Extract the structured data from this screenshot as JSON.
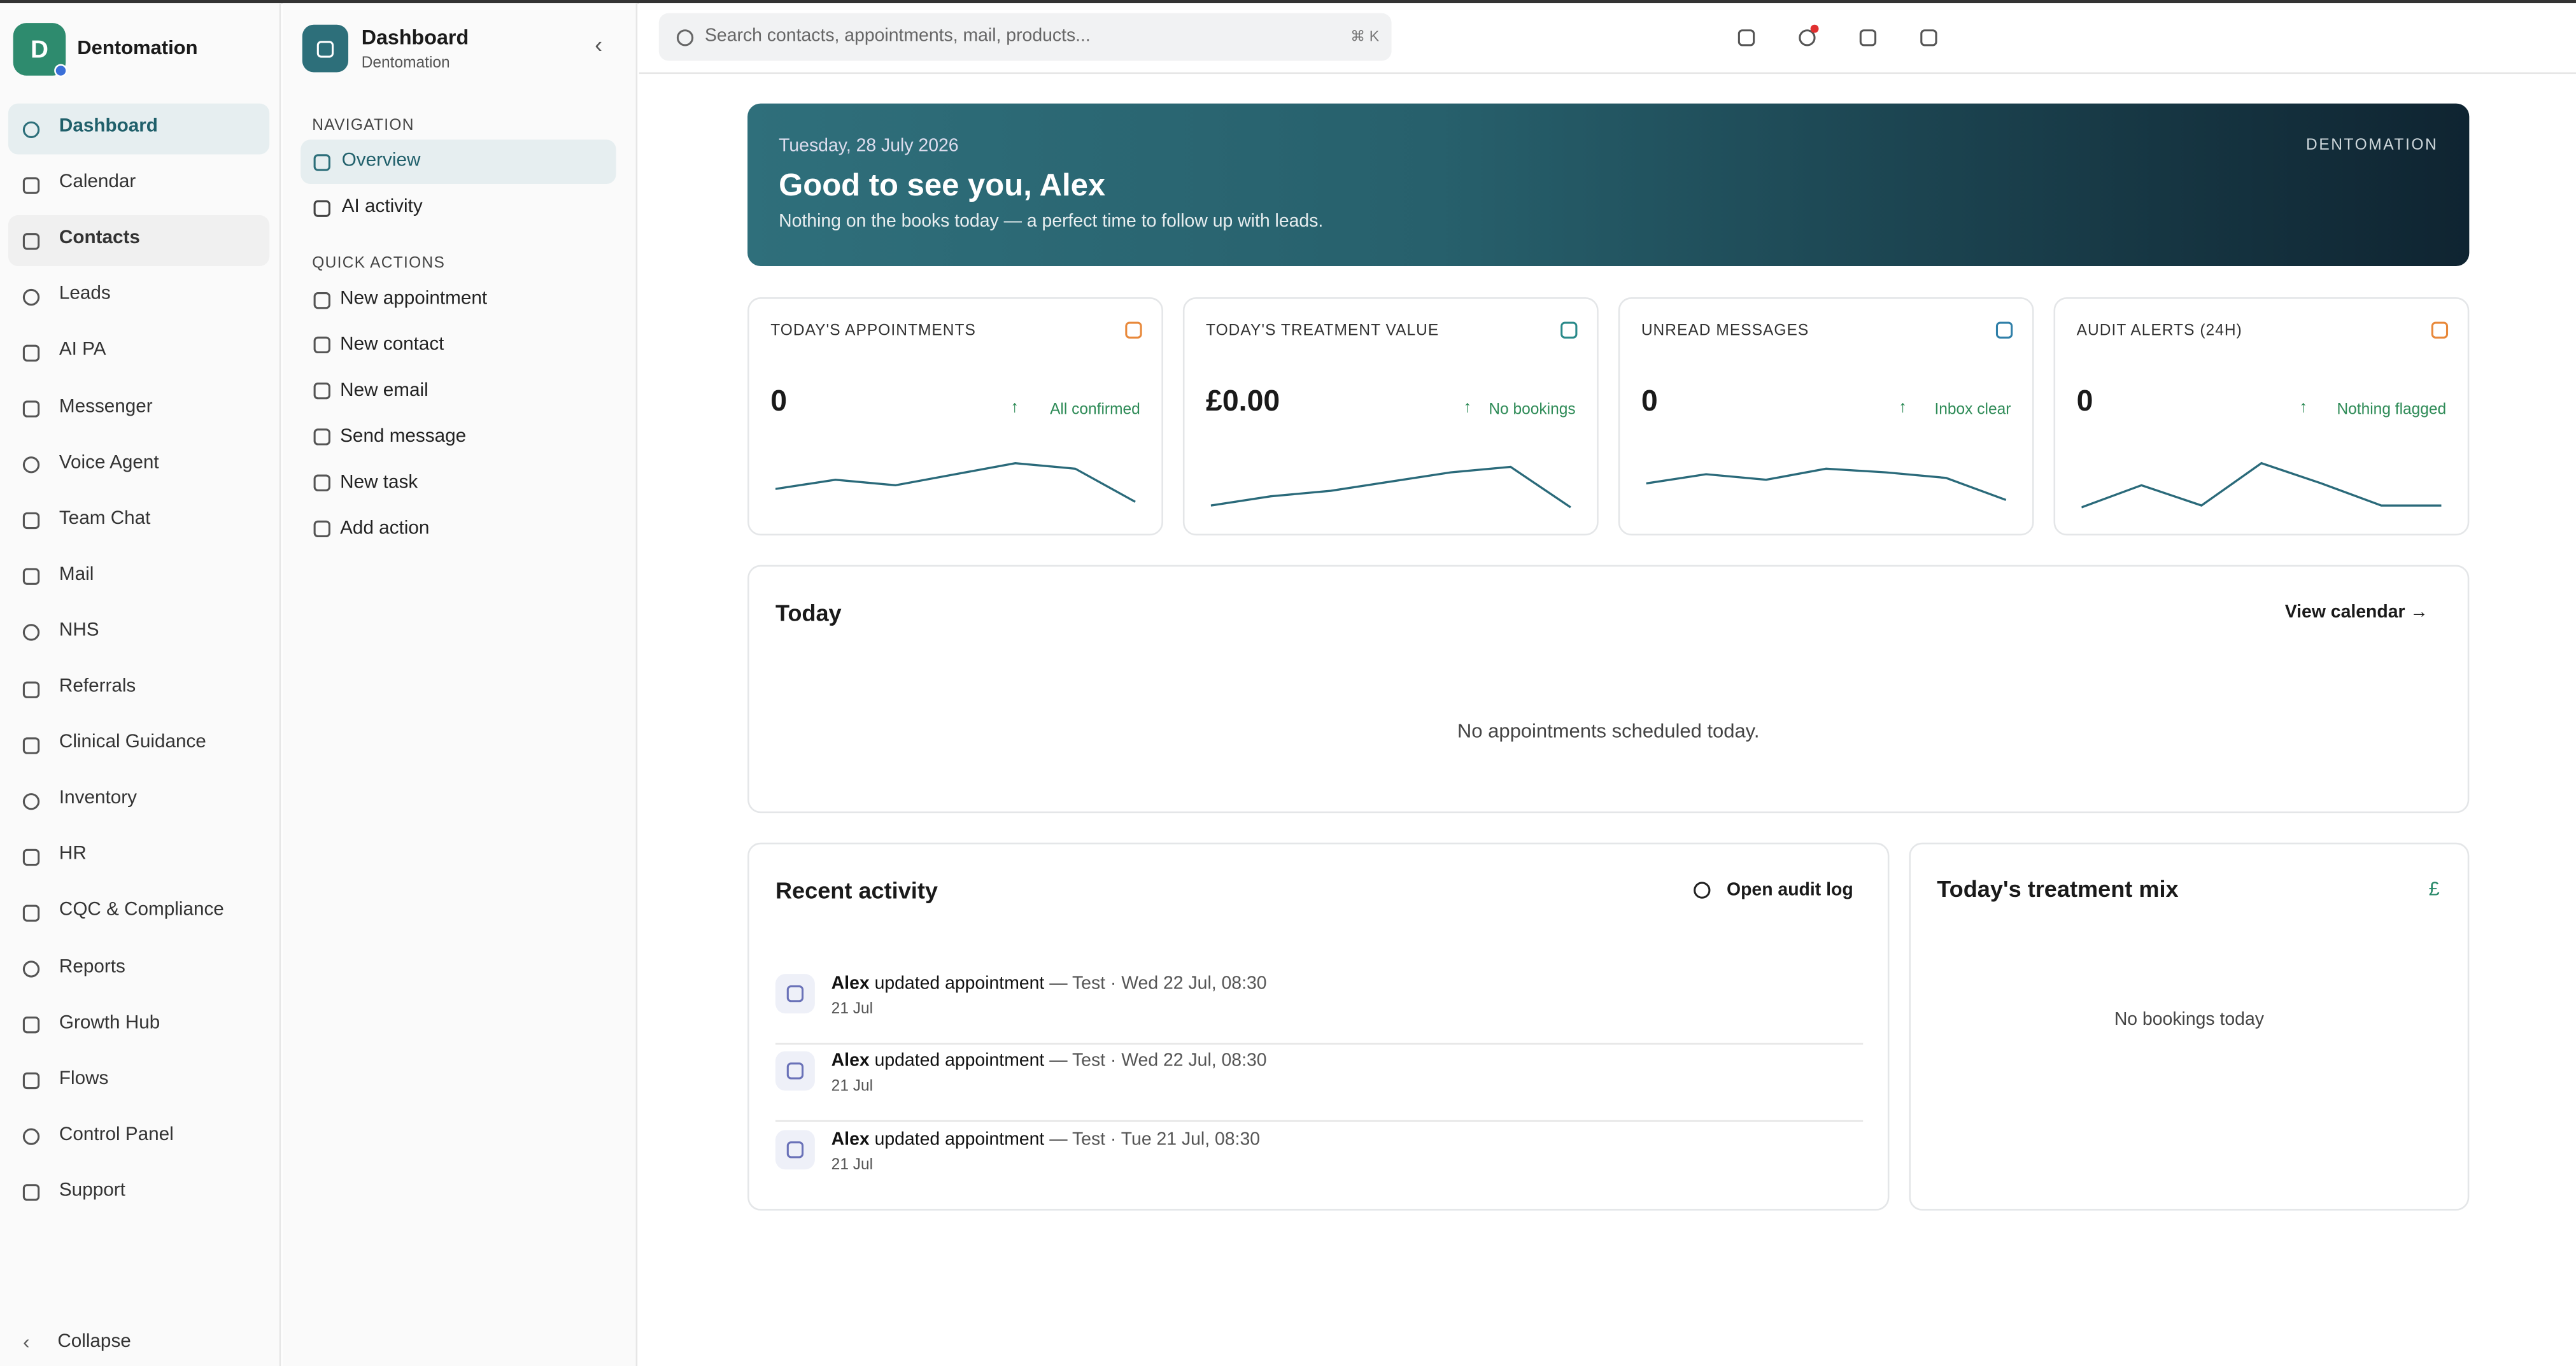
{
  "sidebar": {
    "avatar": "D",
    "brand": "Dentomation",
    "items": [
      "Dashboard",
      "Calendar",
      "Contacts",
      "Leads",
      "AI PA",
      "Messenger",
      "Voice Agent",
      "Team Chat",
      "Mail",
      "NHS",
      "Referrals",
      "Clinical Guidance",
      "Inventory",
      "HR",
      "CQC & Compliance",
      "Reports",
      "Growth Hub",
      "Flows",
      "Control Panel",
      "Support"
    ],
    "collapse": "Collapse"
  },
  "panel": {
    "title": "Dashboard",
    "subtitle": "Dentomation",
    "nav_heading": "NAVIGATION",
    "nav_items": [
      "Overview",
      "AI activity"
    ],
    "actions_heading": "QUICK ACTIONS",
    "actions": [
      "New appointment",
      "New contact",
      "New email",
      "Send message",
      "New task",
      "Add action"
    ]
  },
  "topbar": {
    "search": "Search contacts, appointments, mail, products...",
    "shortcut": "⌘ K"
  },
  "hero": {
    "date": "Tuesday, 28 July 2026",
    "greeting": "Good to see you, Alex",
    "message": "Nothing on the books today — a perfect time to follow up with leads.",
    "brand": "DENTOMATION"
  },
  "kpis": [
    {
      "label": "TODAY'S APPOINTMENTS",
      "value": "0",
      "status": "All confirmed",
      "color": "#e8883a",
      "spark": [
        11,
        16,
        13,
        19,
        25,
        22,
        4
      ]
    },
    {
      "label": "TODAY'S TREATMENT VALUE",
      "value": "£0.00",
      "status": "No bookings",
      "color": "#2a8a8a",
      "spark": [
        2,
        7,
        10,
        15,
        20,
        23,
        1
      ]
    },
    {
      "label": "UNREAD MESSAGES",
      "value": "0",
      "status": "Inbox clear",
      "color": "#2f7fa8",
      "spark": [
        14,
        19,
        16,
        22,
        20,
        17,
        5
      ]
    },
    {
      "label": "AUDIT ALERTS (24H)",
      "value": "0",
      "status": "Nothing flagged",
      "color": "#e8883a",
      "spark": [
        1,
        13,
        2,
        25,
        14,
        2,
        2
      ]
    }
  ],
  "today": {
    "title": "Today",
    "link": "View calendar →",
    "empty": "No appointments scheduled today."
  },
  "activity": {
    "title": "Recent activity",
    "link": "Open audit log",
    "items": [
      {
        "actor": "Alex",
        "action": "updated appointment",
        "detail": "— Test · Wed 22 Jul, 08:30",
        "date": "21 Jul"
      },
      {
        "actor": "Alex",
        "action": "updated appointment",
        "detail": "— Test · Wed 22 Jul, 08:30",
        "date": "21 Jul"
      },
      {
        "actor": "Alex",
        "action": "updated appointment",
        "detail": "— Test · Tue 21 Jul, 08:30",
        "date": "21 Jul"
      }
    ]
  },
  "mix": {
    "title": "Today's treatment mix",
    "icon": "£",
    "empty": "No bookings today"
  }
}
